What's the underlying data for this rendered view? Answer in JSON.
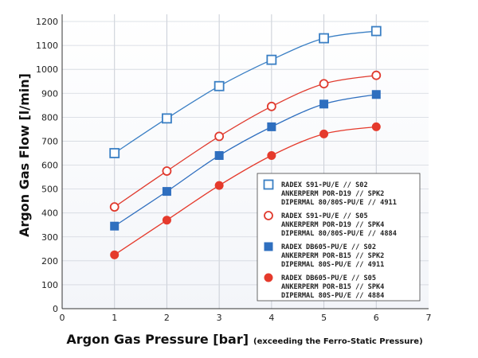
{
  "chart_data": {
    "type": "line",
    "title": "",
    "xlabel": "Argon Gas Pressure [bar]",
    "xlabel_note": "(exceeding the Ferro-Static Pressure)",
    "ylabel": "Argon Gas Flow [l/min]",
    "xlim": [
      0,
      7
    ],
    "ylim": [
      0,
      1230
    ],
    "xticks": [
      0,
      1,
      2,
      3,
      4,
      5,
      6,
      7
    ],
    "yticks": [
      0,
      100,
      200,
      300,
      400,
      500,
      600,
      700,
      800,
      900,
      1000,
      1100,
      1200
    ],
    "grid": true,
    "legend_position": "bottom-right",
    "x": [
      1,
      2,
      3,
      4,
      5,
      6
    ],
    "series": [
      {
        "name": "RADEX S91-PU/E // S02 | ANKERPERM POR-D19 // SPK2 | DIPERMAL 80/80S-PU/E // 4911",
        "legend_lines": [
          "RADEX S91-PU/E // S02",
          "ANKERPERM POR-D19 // SPK2",
          "DIPERMAL 80/80S-PU/E // 4911"
        ],
        "marker": "open-square",
        "color": "#3a7fc4",
        "values": [
          650,
          795,
          930,
          1040,
          1130,
          1160
        ]
      },
      {
        "name": "RADEX S91-PU/E // S05 | ANKERPERM POR-D19 // SPK4 | DIPERMAL 80/80S-PU/E // 4884",
        "legend_lines": [
          "RADEX S91-PU/E // S05",
          "ANKERPERM POR-D19 // SPK4",
          "DIPERMAL 80/80S-PU/E // 4884"
        ],
        "marker": "open-circle",
        "color": "#e03a2e",
        "values": [
          425,
          575,
          720,
          845,
          940,
          975
        ]
      },
      {
        "name": "RADEX DB605-PU/E // S02 | ANKERPERM POR-B15 // SPK2 | DIPERMAL 80S-PU/E // 4911",
        "legend_lines": [
          "RADEX DB605-PU/E // S02",
          "ANKERPERM POR-B15 // SPK2",
          "DIPERMAL 80S-PU/E // 4911"
        ],
        "marker": "filled-square",
        "color": "#2f6fbf",
        "values": [
          345,
          490,
          640,
          760,
          855,
          895
        ]
      },
      {
        "name": "RADEX DB605-PU/E // S05 | ANKERPERM POR-B15 // SPK4 | DIPERMAL 80S-PU/E // 4884",
        "legend_lines": [
          "RADEX DB605-PU/E // S05",
          "ANKERPERM POR-B15 // SPK4",
          "DIPERMAL 80S-PU/E // 4884"
        ],
        "marker": "filled-circle",
        "color": "#e53a2c",
        "values": [
          225,
          370,
          515,
          640,
          730,
          760
        ]
      }
    ]
  }
}
